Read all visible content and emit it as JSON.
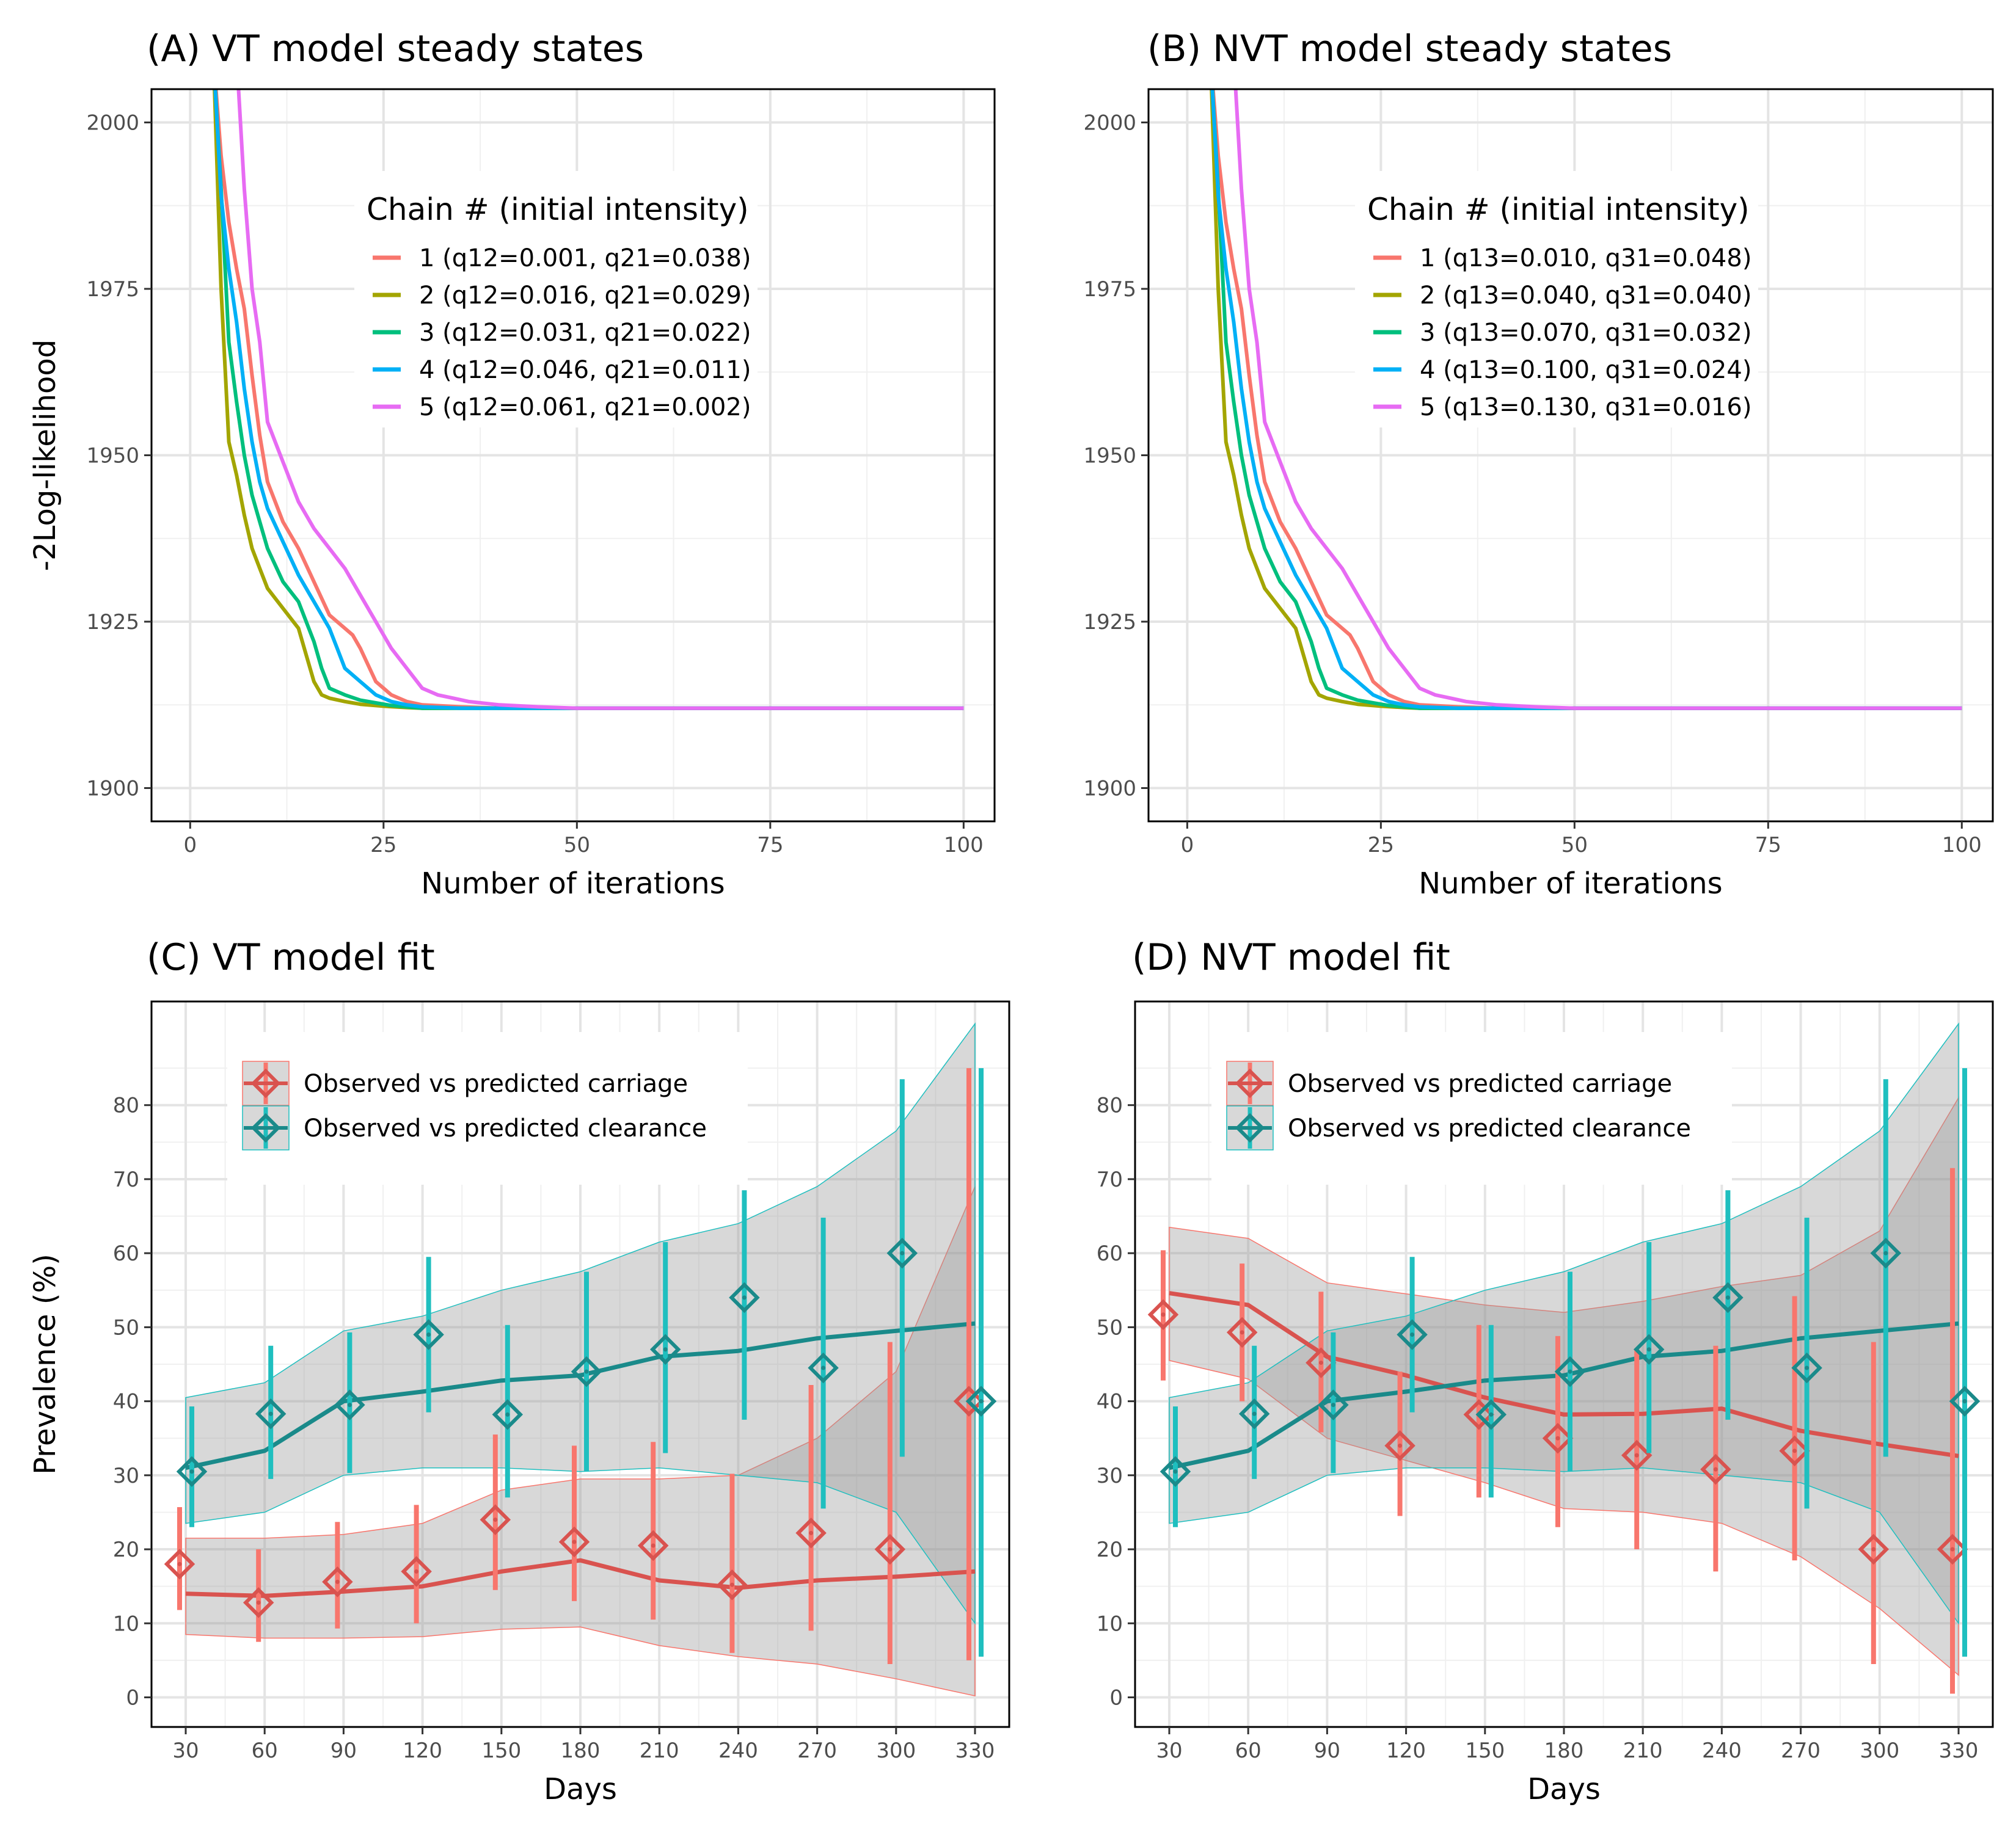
{
  "figure": {
    "colors": {
      "chain1": "#F8766D",
      "chain2": "#A3A500",
      "chain3": "#00BF7D",
      "chain4": "#00B0F6",
      "chain5": "#E76BF3",
      "carriage_line": "#D9534F",
      "carriage_err": "#F8766D",
      "clearance_line": "#1A8A8A",
      "clearance_err": "#1FBFBF",
      "ribbon": "#999999"
    }
  },
  "chart_data": [
    {
      "id": "A",
      "type": "line",
      "title": "(A) VT model steady states",
      "xlabel": "Number of iterations",
      "ylabel": "-2Log-likelihood",
      "xlim": [
        -5,
        104
      ],
      "ylim": [
        1895,
        2005
      ],
      "xticks": [
        0,
        25,
        50,
        75,
        100
      ],
      "yticks": [
        1900,
        1925,
        1950,
        1975,
        2000
      ],
      "grid": true,
      "legend": {
        "position": "top-right",
        "title": "Chain # (initial intensity)",
        "entries": [
          "1 (q12=0.001, q21=0.038)",
          "2 (q12=0.016, q21=0.029)",
          "3 (q12=0.031, q21=0.022)",
          "4 (q12=0.046, q21=0.011)",
          "5 (q12=0.061, q21=0.002)"
        ]
      },
      "series": [
        {
          "name": "1 (q12=0.001, q21=0.038)",
          "x": [
            3,
            4,
            5,
            6,
            7,
            8,
            9,
            10,
            12,
            14,
            16,
            18,
            20,
            21,
            22,
            24,
            26,
            28,
            30,
            35,
            40,
            50,
            60,
            100
          ],
          "y": [
            2010,
            1995,
            1985,
            1978,
            1972,
            1962,
            1953,
            1946,
            1940,
            1936,
            1931,
            1926,
            1924,
            1923,
            1921,
            1916,
            1914,
            1913,
            1912.5,
            1912.2,
            1912,
            1912,
            1912,
            1912
          ]
        },
        {
          "name": "2 (q12=0.016, q21=0.029)",
          "x": [
            3,
            4,
            5,
            6,
            7,
            8,
            9,
            10,
            12,
            14,
            15,
            16,
            17,
            18,
            20,
            22,
            25,
            28,
            30,
            35,
            40,
            60,
            100
          ],
          "y": [
            2010,
            1975,
            1952,
            1947,
            1941,
            1936,
            1933,
            1930,
            1927,
            1924,
            1920,
            1916,
            1914,
            1913.5,
            1913,
            1912.6,
            1912.3,
            1912.1,
            1912,
            1912,
            1912,
            1912,
            1912
          ]
        },
        {
          "name": "3 (q12=0.031, q21=0.022)",
          "x": [
            3,
            4,
            5,
            6,
            7,
            8,
            9,
            10,
            12,
            14,
            16,
            17,
            18,
            20,
            22,
            24,
            26,
            28,
            30,
            35,
            40,
            60,
            100
          ],
          "y": [
            2010,
            1990,
            1967,
            1958,
            1950,
            1944,
            1940,
            1936,
            1931,
            1928,
            1922,
            1918,
            1915,
            1914,
            1913.2,
            1912.8,
            1912.4,
            1912.2,
            1912,
            1912,
            1912,
            1912,
            1912
          ]
        },
        {
          "name": "4 (q12=0.046, q21=0.011)",
          "x": [
            3,
            4,
            5,
            6,
            7,
            8,
            9,
            10,
            12,
            14,
            16,
            18,
            19,
            20,
            22,
            24,
            26,
            28,
            30,
            35,
            40,
            60,
            100
          ],
          "y": [
            2010,
            1989,
            1978,
            1970,
            1960,
            1952,
            1946,
            1942,
            1937,
            1932,
            1928,
            1924,
            1921,
            1918,
            1916,
            1914,
            1913,
            1912.5,
            1912.2,
            1912,
            1912,
            1912,
            1912
          ]
        },
        {
          "name": "5 (q12=0.061, q21=0.002)",
          "x": [
            6,
            7,
            8,
            9,
            10,
            12,
            14,
            16,
            18,
            20,
            22,
            24,
            26,
            28,
            30,
            32,
            34,
            36,
            40,
            45,
            50,
            60,
            100
          ],
          "y": [
            2010,
            1990,
            1975,
            1967,
            1955,
            1949,
            1943,
            1939,
            1936,
            1933,
            1929,
            1925,
            1921,
            1918,
            1915,
            1914,
            1913.5,
            1913,
            1912.5,
            1912.2,
            1912,
            1912,
            1912
          ]
        }
      ]
    },
    {
      "id": "B",
      "type": "line",
      "title": "(B) NVT model steady states",
      "xlabel": "Number of iterations",
      "ylabel": "",
      "xlim": [
        -5,
        104
      ],
      "ylim": [
        1895,
        2005
      ],
      "xticks": [
        0,
        25,
        50,
        75,
        100
      ],
      "yticks": [
        1900,
        1925,
        1950,
        1975,
        2000
      ],
      "grid": true,
      "legend": {
        "position": "top-right",
        "title": "Chain # (initial intensity)",
        "entries": [
          "1 (q13=0.010, q31=0.048)",
          "2 (q13=0.040, q31=0.040)",
          "3 (q13=0.070, q31=0.032)",
          "4 (q13=0.100, q31=0.024)",
          "5 (q13=0.130, q31=0.016)"
        ]
      },
      "series": [
        {
          "name": "1 (q13=0.010, q31=0.048)",
          "x": [
            3,
            4,
            5,
            6,
            7,
            8,
            9,
            10,
            12,
            14,
            16,
            18,
            20,
            21,
            22,
            24,
            26,
            28,
            30,
            35,
            40,
            50,
            60,
            100
          ],
          "y": [
            2010,
            1995,
            1985,
            1978,
            1972,
            1962,
            1953,
            1946,
            1940,
            1936,
            1931,
            1926,
            1924,
            1923,
            1921,
            1916,
            1914,
            1913,
            1912.5,
            1912.2,
            1912,
            1912,
            1912,
            1912
          ]
        },
        {
          "name": "2 (q13=0.040, q31=0.040)",
          "x": [
            3,
            4,
            5,
            6,
            7,
            8,
            9,
            10,
            12,
            14,
            15,
            16,
            17,
            18,
            20,
            22,
            25,
            28,
            30,
            35,
            40,
            60,
            100
          ],
          "y": [
            2010,
            1975,
            1952,
            1947,
            1941,
            1936,
            1933,
            1930,
            1927,
            1924,
            1920,
            1916,
            1914,
            1913.5,
            1913,
            1912.6,
            1912.3,
            1912.1,
            1912,
            1912,
            1912,
            1912,
            1912
          ]
        },
        {
          "name": "3 (q13=0.070, q31=0.032)",
          "x": [
            3,
            4,
            5,
            6,
            7,
            8,
            9,
            10,
            12,
            14,
            16,
            17,
            18,
            20,
            22,
            24,
            26,
            28,
            30,
            35,
            40,
            60,
            100
          ],
          "y": [
            2010,
            1990,
            1967,
            1958,
            1950,
            1944,
            1940,
            1936,
            1931,
            1928,
            1922,
            1918,
            1915,
            1914,
            1913.2,
            1912.8,
            1912.4,
            1912.2,
            1912,
            1912,
            1912,
            1912,
            1912
          ]
        },
        {
          "name": "4 (q13=0.100, q31=0.024)",
          "x": [
            3,
            4,
            5,
            6,
            7,
            8,
            9,
            10,
            12,
            14,
            16,
            18,
            19,
            20,
            22,
            24,
            26,
            28,
            30,
            35,
            40,
            60,
            100
          ],
          "y": [
            2010,
            1989,
            1978,
            1970,
            1960,
            1952,
            1946,
            1942,
            1937,
            1932,
            1928,
            1924,
            1921,
            1918,
            1916,
            1914,
            1913,
            1912.5,
            1912.2,
            1912,
            1912,
            1912,
            1912
          ]
        },
        {
          "name": "5 (q13=0.130, q31=0.016)",
          "x": [
            6,
            7,
            8,
            9,
            10,
            12,
            14,
            16,
            18,
            20,
            22,
            24,
            26,
            28,
            30,
            32,
            34,
            36,
            40,
            45,
            50,
            60,
            100
          ],
          "y": [
            2010,
            1990,
            1975,
            1967,
            1955,
            1949,
            1943,
            1939,
            1936,
            1933,
            1929,
            1925,
            1921,
            1918,
            1915,
            1914,
            1913.5,
            1913,
            1912.5,
            1912.2,
            1912,
            1912,
            1912
          ]
        }
      ]
    },
    {
      "id": "C",
      "type": "line",
      "title": "(C) VT model fit",
      "xlabel": "Days",
      "ylabel": "Prevalence (%)",
      "xlim": [
        17,
        343
      ],
      "ylim": [
        -4,
        94
      ],
      "xticks": [
        30,
        60,
        90,
        120,
        150,
        180,
        210,
        240,
        270,
        300,
        330
      ],
      "yticks": [
        0,
        10,
        20,
        30,
        40,
        50,
        60,
        70,
        80
      ],
      "grid": true,
      "legend": {
        "position": "top-left",
        "entries": [
          "Observed vs predicted carriage",
          "Observed vs predicted clearance"
        ]
      },
      "series": [
        {
          "name": "Observed vs predicted carriage",
          "x": [
            30,
            60,
            90,
            120,
            150,
            180,
            210,
            240,
            270,
            300,
            330
          ],
          "predicted": [
            14,
            13.7,
            14.3,
            15,
            17,
            18.5,
            15.8,
            14.8,
            15.8,
            16.3,
            17
          ],
          "band_low": [
            8.5,
            8,
            8,
            8.2,
            9.2,
            9.5,
            7,
            5.5,
            4.5,
            2.5,
            0.2
          ],
          "band_high": [
            21.5,
            21.5,
            22,
            23.5,
            28,
            29.5,
            29.5,
            30,
            35,
            44,
            69
          ],
          "observed": [
            18,
            12.8,
            15.6,
            17,
            24,
            21,
            20.5,
            15.2,
            22.2,
            20,
            40
          ],
          "err_low": [
            11.8,
            7.5,
            9.3,
            10,
            14.5,
            13,
            10.5,
            6,
            9,
            4.5,
            5
          ],
          "err_high": [
            25.7,
            20,
            23.7,
            26,
            35.5,
            34,
            34.5,
            30.2,
            42.2,
            48,
            85
          ]
        },
        {
          "name": "Observed vs predicted clearance",
          "x": [
            30,
            60,
            90,
            120,
            150,
            180,
            210,
            240,
            270,
            300,
            330
          ],
          "predicted": [
            31,
            33.3,
            40,
            41.3,
            42.8,
            43.5,
            46,
            46.8,
            48.5,
            49.5,
            50.5
          ],
          "band_low": [
            23.5,
            25,
            30,
            31,
            31,
            30.5,
            31,
            30,
            29,
            25,
            10
          ],
          "band_high": [
            40.5,
            42.5,
            49.5,
            51.5,
            55,
            57.5,
            61.5,
            64,
            69,
            76.5,
            91
          ],
          "observed": [
            30.5,
            38.3,
            39.5,
            49,
            38.2,
            44,
            47,
            54,
            44.5,
            60,
            40
          ],
          "err_low": [
            23,
            29.5,
            30.3,
            38.5,
            27,
            30.5,
            33,
            37.5,
            25.5,
            32.5,
            5.5
          ],
          "err_high": [
            39.3,
            47.5,
            49.3,
            59.5,
            50.3,
            57.5,
            61.5,
            68.5,
            64.8,
            83.5,
            85
          ]
        }
      ]
    },
    {
      "id": "D",
      "type": "line",
      "title": "(D) NVT model fit",
      "xlabel": "Days",
      "ylabel": "",
      "xlim": [
        17,
        343
      ],
      "ylim": [
        -4,
        94
      ],
      "xticks": [
        30,
        60,
        90,
        120,
        150,
        180,
        210,
        240,
        270,
        300,
        330
      ],
      "yticks": [
        0,
        10,
        20,
        30,
        40,
        50,
        60,
        70,
        80
      ],
      "grid": true,
      "legend": {
        "position": "top-left",
        "entries": [
          "Observed vs predicted carriage",
          "Observed vs predicted clearance"
        ]
      },
      "series": [
        {
          "name": "Observed vs predicted carriage",
          "x": [
            30,
            60,
            90,
            120,
            150,
            180,
            210,
            240,
            270,
            300,
            330
          ],
          "predicted": [
            54.6,
            53,
            46,
            43.5,
            40.5,
            38.2,
            38.3,
            39,
            36,
            34.2,
            32.6
          ],
          "band_low": [
            45.5,
            43,
            35,
            32,
            29,
            25.5,
            25,
            23.5,
            19,
            12,
            3
          ],
          "band_high": [
            63.5,
            62,
            56,
            54.5,
            53,
            52,
            53.5,
            55.5,
            57,
            63,
            81
          ],
          "observed": [
            51.7,
            49.3,
            45.2,
            34,
            38.2,
            35,
            32.7,
            30.8,
            33.3,
            20,
            20
          ],
          "err_low": [
            42.8,
            40,
            35.8,
            24.5,
            27,
            23,
            20,
            17,
            18.5,
            4.5,
            0.5
          ],
          "err_high": [
            60.4,
            58.6,
            54.8,
            44,
            50.3,
            48.8,
            47,
            47.5,
            54.2,
            48,
            71.5
          ]
        },
        {
          "name": "Observed vs predicted clearance",
          "x": [
            30,
            60,
            90,
            120,
            150,
            180,
            210,
            240,
            270,
            300,
            330
          ],
          "predicted": [
            31,
            33.3,
            40,
            41.3,
            42.8,
            43.5,
            46,
            46.8,
            48.5,
            49.5,
            50.5
          ],
          "band_low": [
            23.5,
            25,
            30,
            31,
            31,
            30.5,
            31,
            30,
            29,
            25,
            10
          ],
          "band_high": [
            40.5,
            42.5,
            49.5,
            51.5,
            55,
            57.5,
            61.5,
            64,
            69,
            76.5,
            91
          ],
          "observed": [
            30.5,
            38.3,
            39.5,
            49,
            38.2,
            44,
            47,
            54,
            44.5,
            60,
            40
          ],
          "err_low": [
            23,
            29.5,
            30.3,
            38.5,
            27,
            30.5,
            33,
            37.5,
            25.5,
            32.5,
            5.5
          ],
          "err_high": [
            39.3,
            47.5,
            49.3,
            59.5,
            50.3,
            57.5,
            61.5,
            68.5,
            64.8,
            83.5,
            85
          ]
        }
      ]
    }
  ]
}
